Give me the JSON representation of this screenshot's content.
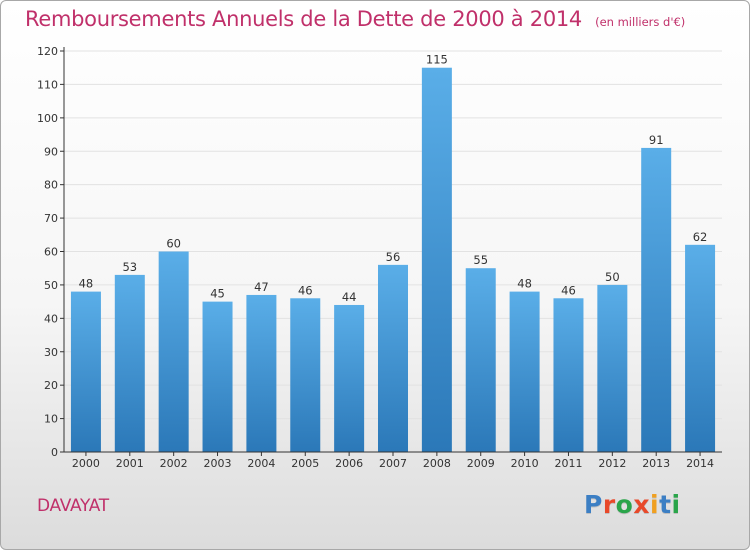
{
  "header": {
    "title": "Remboursements Annuels de la Dette de 2000 à 2014",
    "unit_note": "(en milliers d'€)"
  },
  "footer": {
    "commune": "DAVAYAT",
    "brand": "Proxiti",
    "brand_letters": [
      {
        "char": "P",
        "color": "#3c7fc4"
      },
      {
        "char": "r",
        "color": "#e8492a"
      },
      {
        "char": "o",
        "color": "#2aa54a"
      },
      {
        "char": "x",
        "color": "#e8492a"
      },
      {
        "char": "i",
        "color": "#f0a020"
      },
      {
        "char": "t",
        "color": "#3c7fc4"
      },
      {
        "char": "i",
        "color": "#2aa54a"
      }
    ]
  },
  "colors": {
    "accent": "#c0306a",
    "bar_top": "#5aaee8",
    "bar_bottom": "#2b78b8",
    "grid": "#e2e2e2",
    "axis": "#333333"
  },
  "chart_data": {
    "type": "bar",
    "title": "Remboursements Annuels de la Dette de 2000 à 2014",
    "subtitle": "(en milliers d'€)",
    "xlabel": "",
    "ylabel": "",
    "categories": [
      "2000",
      "2001",
      "2002",
      "2003",
      "2004",
      "2005",
      "2006",
      "2007",
      "2008",
      "2009",
      "2010",
      "2011",
      "2012",
      "2013",
      "2014"
    ],
    "values": [
      48,
      53,
      60,
      45,
      47,
      46,
      44,
      56,
      115,
      55,
      48,
      46,
      50,
      91,
      62
    ],
    "ylim": [
      0,
      120
    ],
    "yticks": [
      0,
      10,
      20,
      30,
      40,
      50,
      60,
      70,
      80,
      90,
      100,
      110,
      120
    ],
    "grid": true,
    "data_labels": true,
    "legend": "none"
  }
}
